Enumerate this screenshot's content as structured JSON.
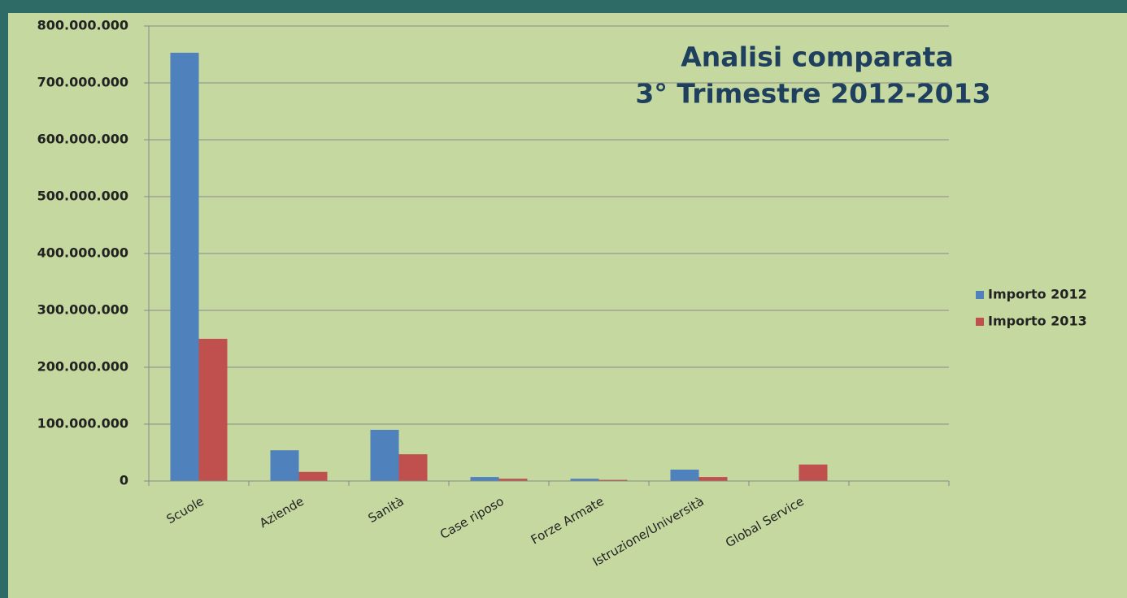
{
  "chart_data": {
    "type": "bar",
    "title": [
      "Analisi comparata",
      "3° Trimestre 2012-2013"
    ],
    "categories": [
      "Scuole",
      "Aziende",
      "Sanità",
      "Case riposo",
      "Forze Armate",
      "Istruzione/Università",
      "Global Service",
      null
    ],
    "series": [
      {
        "name": "Importo 2012",
        "color": "#4f81bd",
        "values": [
          753000000,
          54000000,
          90000000,
          7000000,
          4000000,
          20000000,
          0,
          null
        ]
      },
      {
        "name": "Importo 2013",
        "color": "#c0504d",
        "values": [
          250000000,
          16000000,
          47000000,
          4000000,
          2000000,
          7000000,
          29000000,
          null
        ]
      }
    ],
    "ylim": [
      0,
      800000000
    ],
    "yticks": [
      0,
      {
        "value": 100000000,
        "label": "100.000.000"
      },
      {
        "value": 200000000,
        "label": "200.000.000"
      },
      {
        "value": 300000000,
        "label": "300.000.000"
      },
      {
        "value": 400000000,
        "label": "400.000.000"
      },
      {
        "value": 500000000,
        "label": "500.000.000"
      },
      {
        "value": 600000000,
        "label": "600.000.000"
      },
      {
        "value": 700000000,
        "label": "700.000.000"
      },
      {
        "value": 800000000,
        "label": "800.000.000"
      }
    ],
    "grid": true,
    "legend": "right"
  }
}
